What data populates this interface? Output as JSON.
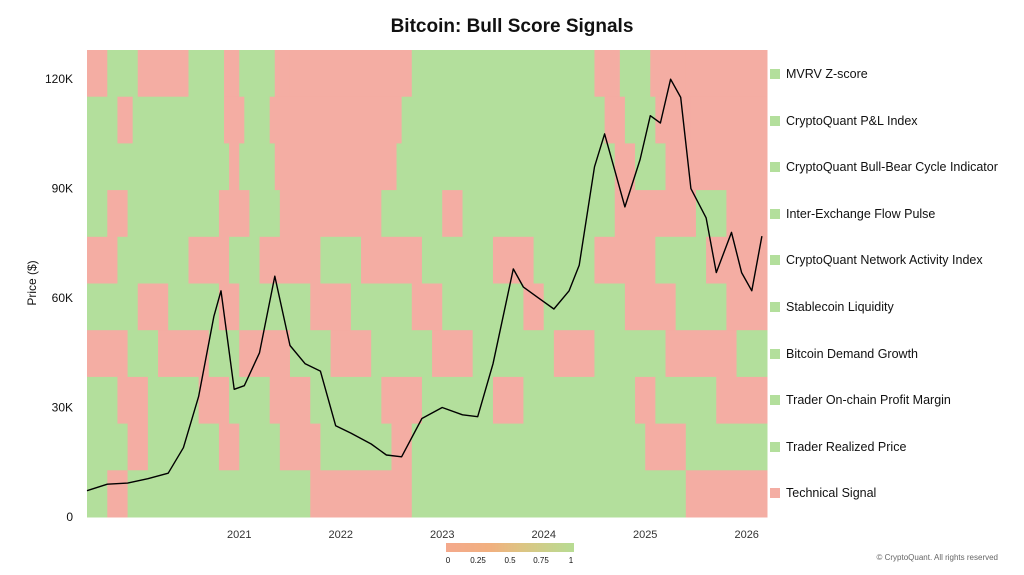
{
  "chart_data": {
    "type": "heatmap",
    "title": "Bitcoin: Bull Score Signals",
    "ylabel": "Price ($)",
    "ylim": [
      0,
      128000
    ],
    "xlim": [
      "2020-01",
      "2026-09"
    ],
    "x_ticks": [
      "2021",
      "2022",
      "2023",
      "2024",
      "2025",
      "2026"
    ],
    "y_ticks": [
      "0",
      "30K",
      "60K",
      "90K",
      "120K"
    ],
    "y_tick_values": [
      0,
      30000,
      60000,
      90000,
      120000
    ],
    "colors": {
      "bull": "#b3df9c",
      "bear": "#f4ada3",
      "price_line": "#000000"
    },
    "signals": [
      {
        "name": "MVRV Z-score",
        "color": "#b3df9c"
      },
      {
        "name": "CryptoQuant P&L Index",
        "color": "#b3df9c"
      },
      {
        "name": "CryptoQuant Bull-Bear Cycle Indicator",
        "color": "#b3df9c"
      },
      {
        "name": "Inter-Exchange Flow Pulse",
        "color": "#b3df9c"
      },
      {
        "name": "CryptoQuant Network Activity Index",
        "color": "#b3df9c"
      },
      {
        "name": "Stablecoin Liquidity",
        "color": "#b3df9c"
      },
      {
        "name": "Bitcoin Demand Growth",
        "color": "#b3df9c"
      },
      {
        "name": "Trader On-chain Profit Margin",
        "color": "#b3df9c"
      },
      {
        "name": "Trader Realized Price",
        "color": "#b3df9c"
      },
      {
        "name": "Technical Signal",
        "color": "#f4ada3"
      }
    ],
    "heatmap_rows": [
      {
        "segments": [
          [
            2020.0,
            2020.2,
            "bear"
          ],
          [
            2020.2,
            2020.5,
            "bull"
          ],
          [
            2020.5,
            2021.0,
            "bear"
          ],
          [
            2021.0,
            2021.35,
            "bull"
          ],
          [
            2021.35,
            2021.5,
            "bear"
          ],
          [
            2021.5,
            2021.85,
            "bull"
          ],
          [
            2021.85,
            2022.0,
            "bear"
          ],
          [
            2022.0,
            2023.2,
            "bear"
          ],
          [
            2023.2,
            2025.0,
            "bull"
          ],
          [
            2025.0,
            2025.25,
            "bear"
          ],
          [
            2025.25,
            2025.55,
            "bull"
          ],
          [
            2025.55,
            2025.9,
            "bear"
          ],
          [
            2025.9,
            2026.7,
            "bear"
          ]
        ]
      },
      {
        "segments": [
          [
            2020.0,
            2020.3,
            "bull"
          ],
          [
            2020.3,
            2020.45,
            "bear"
          ],
          [
            2020.45,
            2021.35,
            "bull"
          ],
          [
            2021.35,
            2021.55,
            "bear"
          ],
          [
            2021.55,
            2021.8,
            "bull"
          ],
          [
            2021.8,
            2023.1,
            "bear"
          ],
          [
            2023.1,
            2025.1,
            "bull"
          ],
          [
            2025.1,
            2025.3,
            "bear"
          ],
          [
            2025.3,
            2025.6,
            "bull"
          ],
          [
            2025.6,
            2025.95,
            "bear"
          ],
          [
            2025.95,
            2026.7,
            "bear"
          ]
        ]
      },
      {
        "segments": [
          [
            2020.0,
            2020.35,
            "bull"
          ],
          [
            2020.35,
            2021.4,
            "bull"
          ],
          [
            2021.4,
            2021.5,
            "bear"
          ],
          [
            2021.5,
            2021.85,
            "bull"
          ],
          [
            2021.85,
            2023.05,
            "bear"
          ],
          [
            2023.05,
            2025.2,
            "bull"
          ],
          [
            2025.2,
            2025.4,
            "bear"
          ],
          [
            2025.4,
            2025.7,
            "bull"
          ],
          [
            2025.7,
            2026.0,
            "bear"
          ],
          [
            2026.0,
            2026.7,
            "bear"
          ]
        ]
      },
      {
        "segments": [
          [
            2020.0,
            2020.2,
            "bull"
          ],
          [
            2020.2,
            2020.4,
            "bear"
          ],
          [
            2020.4,
            2021.3,
            "bull"
          ],
          [
            2021.3,
            2021.6,
            "bear"
          ],
          [
            2021.6,
            2021.9,
            "bull"
          ],
          [
            2021.9,
            2022.9,
            "bear"
          ],
          [
            2022.9,
            2023.5,
            "bull"
          ],
          [
            2023.5,
            2023.7,
            "bear"
          ],
          [
            2023.7,
            2025.2,
            "bull"
          ],
          [
            2025.2,
            2026.0,
            "bear"
          ],
          [
            2026.0,
            2026.3,
            "bull"
          ],
          [
            2026.3,
            2026.7,
            "bear"
          ]
        ]
      },
      {
        "segments": [
          [
            2020.0,
            2020.3,
            "bear"
          ],
          [
            2020.3,
            2021.0,
            "bull"
          ],
          [
            2021.0,
            2021.4,
            "bear"
          ],
          [
            2021.4,
            2021.7,
            "bull"
          ],
          [
            2021.7,
            2022.3,
            "bear"
          ],
          [
            2022.3,
            2022.7,
            "bull"
          ],
          [
            2022.7,
            2023.3,
            "bear"
          ],
          [
            2023.3,
            2024.0,
            "bull"
          ],
          [
            2024.0,
            2024.4,
            "bear"
          ],
          [
            2024.4,
            2025.0,
            "bull"
          ],
          [
            2025.0,
            2025.6,
            "bear"
          ],
          [
            2025.6,
            2026.1,
            "bull"
          ],
          [
            2026.1,
            2026.7,
            "bear"
          ]
        ]
      },
      {
        "segments": [
          [
            2020.0,
            2020.5,
            "bull"
          ],
          [
            2020.5,
            2020.8,
            "bear"
          ],
          [
            2020.8,
            2021.3,
            "bull"
          ],
          [
            2021.3,
            2021.5,
            "bear"
          ],
          [
            2021.5,
            2022.2,
            "bull"
          ],
          [
            2022.2,
            2022.6,
            "bear"
          ],
          [
            2022.6,
            2023.2,
            "bull"
          ],
          [
            2023.2,
            2023.5,
            "bear"
          ],
          [
            2023.5,
            2024.3,
            "bull"
          ],
          [
            2024.3,
            2024.5,
            "bear"
          ],
          [
            2024.5,
            2025.3,
            "bull"
          ],
          [
            2025.3,
            2025.8,
            "bear"
          ],
          [
            2025.8,
            2026.3,
            "bull"
          ],
          [
            2026.3,
            2026.7,
            "bear"
          ]
        ]
      },
      {
        "segments": [
          [
            2020.0,
            2020.4,
            "bear"
          ],
          [
            2020.4,
            2020.7,
            "bull"
          ],
          [
            2020.7,
            2021.2,
            "bear"
          ],
          [
            2021.2,
            2021.5,
            "bull"
          ],
          [
            2021.5,
            2022.0,
            "bear"
          ],
          [
            2022.0,
            2022.4,
            "bull"
          ],
          [
            2022.4,
            2022.8,
            "bear"
          ],
          [
            2022.8,
            2023.4,
            "bull"
          ],
          [
            2023.4,
            2023.8,
            "bear"
          ],
          [
            2023.8,
            2024.6,
            "bull"
          ],
          [
            2024.6,
            2025.0,
            "bear"
          ],
          [
            2025.0,
            2025.7,
            "bull"
          ],
          [
            2025.7,
            2026.4,
            "bear"
          ],
          [
            2026.4,
            2026.7,
            "bull"
          ]
        ]
      },
      {
        "segments": [
          [
            2020.0,
            2020.3,
            "bull"
          ],
          [
            2020.3,
            2020.6,
            "bear"
          ],
          [
            2020.6,
            2021.1,
            "bull"
          ],
          [
            2021.1,
            2021.4,
            "bear"
          ],
          [
            2021.4,
            2021.8,
            "bull"
          ],
          [
            2021.8,
            2022.2,
            "bear"
          ],
          [
            2022.2,
            2022.9,
            "bull"
          ],
          [
            2022.9,
            2023.3,
            "bear"
          ],
          [
            2023.3,
            2024.0,
            "bull"
          ],
          [
            2024.0,
            2024.3,
            "bear"
          ],
          [
            2024.3,
            2025.4,
            "bull"
          ],
          [
            2025.4,
            2025.6,
            "bear"
          ],
          [
            2025.6,
            2026.2,
            "bull"
          ],
          [
            2026.2,
            2026.7,
            "bear"
          ]
        ]
      },
      {
        "segments": [
          [
            2020.0,
            2020.4,
            "bull"
          ],
          [
            2020.4,
            2020.6,
            "bear"
          ],
          [
            2020.6,
            2021.3,
            "bull"
          ],
          [
            2021.3,
            2021.5,
            "bear"
          ],
          [
            2021.5,
            2021.9,
            "bull"
          ],
          [
            2021.9,
            2022.3,
            "bear"
          ],
          [
            2022.3,
            2023.0,
            "bull"
          ],
          [
            2023.0,
            2023.2,
            "bear"
          ],
          [
            2023.2,
            2025.5,
            "bull"
          ],
          [
            2025.5,
            2025.9,
            "bear"
          ],
          [
            2025.9,
            2026.7,
            "bull"
          ]
        ]
      },
      {
        "segments": [
          [
            2020.0,
            2020.2,
            "bull"
          ],
          [
            2020.2,
            2020.4,
            "bear"
          ],
          [
            2020.4,
            2022.2,
            "bull"
          ],
          [
            2022.2,
            2023.2,
            "bear"
          ],
          [
            2023.2,
            2025.9,
            "bull"
          ],
          [
            2025.9,
            2026.7,
            "bear"
          ]
        ]
      }
    ],
    "price_series": {
      "name": "",
      "x": [
        2020.0,
        2020.2,
        2020.4,
        2020.6,
        2020.8,
        2020.95,
        2021.1,
        2021.25,
        2021.32,
        2021.45,
        2021.55,
        2021.7,
        2021.85,
        2022.0,
        2022.15,
        2022.3,
        2022.45,
        2022.6,
        2022.8,
        2022.95,
        2023.1,
        2023.3,
        2023.5,
        2023.7,
        2023.85,
        2024.0,
        2024.2,
        2024.3,
        2024.45,
        2024.6,
        2024.75,
        2024.85,
        2025.0,
        2025.1,
        2025.2,
        2025.3,
        2025.45,
        2025.55,
        2025.65,
        2025.75,
        2025.85,
        2025.95,
        2026.1,
        2026.2,
        2026.35,
        2026.45,
        2026.55,
        2026.65
      ],
      "y": [
        7200,
        9000,
        9300,
        10500,
        12000,
        19000,
        33000,
        55000,
        62000,
        35000,
        36000,
        45000,
        66000,
        47000,
        42000,
        40000,
        25000,
        23000,
        20000,
        17000,
        16500,
        27000,
        30000,
        28000,
        27500,
        42000,
        68000,
        63000,
        60000,
        57000,
        62000,
        69000,
        96000,
        105000,
        95000,
        85000,
        98000,
        110000,
        108000,
        120000,
        115000,
        90000,
        82000,
        67000,
        78000,
        67000,
        62000,
        77000
      ]
    },
    "colorbar": {
      "ticks": [
        "0",
        "0.25",
        "0.5",
        "0.75",
        "1"
      ]
    }
  },
  "footer": {
    "credit": "© CryptoQuant. All rights reserved"
  }
}
